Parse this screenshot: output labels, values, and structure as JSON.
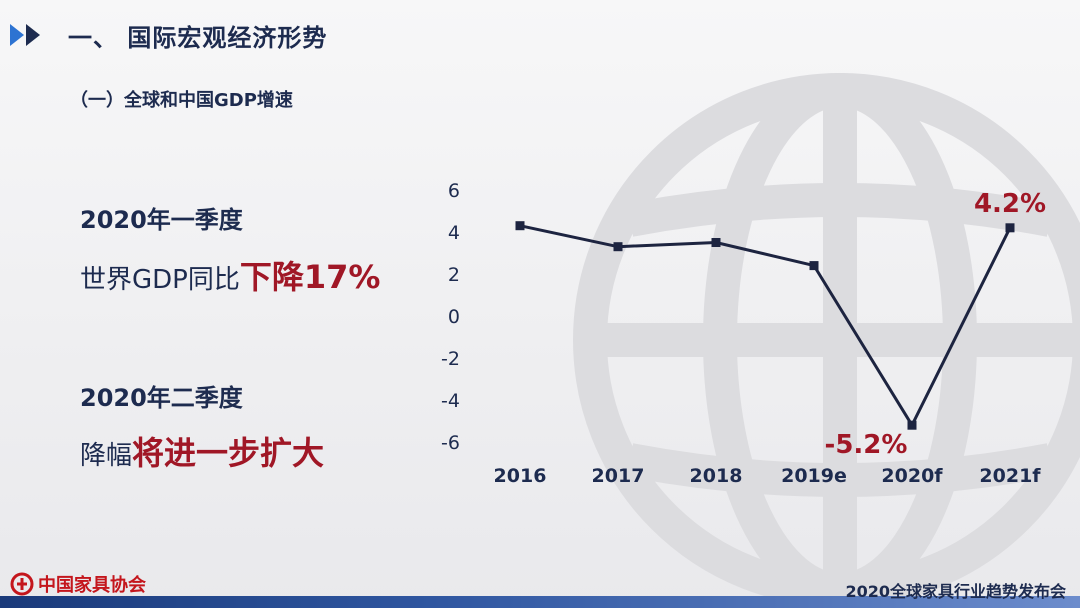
{
  "header": {
    "section_title": "一、 国际宏观经济形势",
    "subsection_title": "（一）全球和中国GDP增速"
  },
  "left_panel": {
    "q1_period": "2020年一季度",
    "q1_text": "世界GDP同比",
    "q1_emphasis": "下降17%",
    "q2_period": "2020年二季度",
    "q2_text": "降幅",
    "q2_emphasis": "将进一步扩大"
  },
  "chart_data": {
    "type": "line",
    "categories": [
      "2016",
      "2017",
      "2018",
      "2019e",
      "2020f",
      "2021f"
    ],
    "series": [
      {
        "values": [
          4.3,
          3.3,
          3.5,
          2.4,
          -5.2,
          4.2
        ]
      }
    ],
    "ylim": [
      -6,
      6
    ],
    "yticks": [
      "6",
      "4",
      "2",
      "0",
      "-2",
      "-4",
      "-6"
    ],
    "annotations": [
      {
        "category": "2020f",
        "text": "-5.2%"
      },
      {
        "category": "2021f",
        "text": "4.2%"
      }
    ],
    "grid": false,
    "colors": {
      "line": "#1d2440",
      "annotation": "#a01726",
      "axis_text": "#1d2b4f"
    }
  },
  "footer": {
    "org_name": "中国家具协会",
    "event_name": "2020全球家具行业趋势发布会"
  },
  "colors": {
    "navy": "#1d2b4f",
    "accent_red": "#a01726",
    "arrow_blue": "#2d73d2"
  },
  "icons": {
    "header": "double-arrow-icon",
    "logo": "association-logo-icon",
    "watermark": "globe-watermark-icon"
  }
}
